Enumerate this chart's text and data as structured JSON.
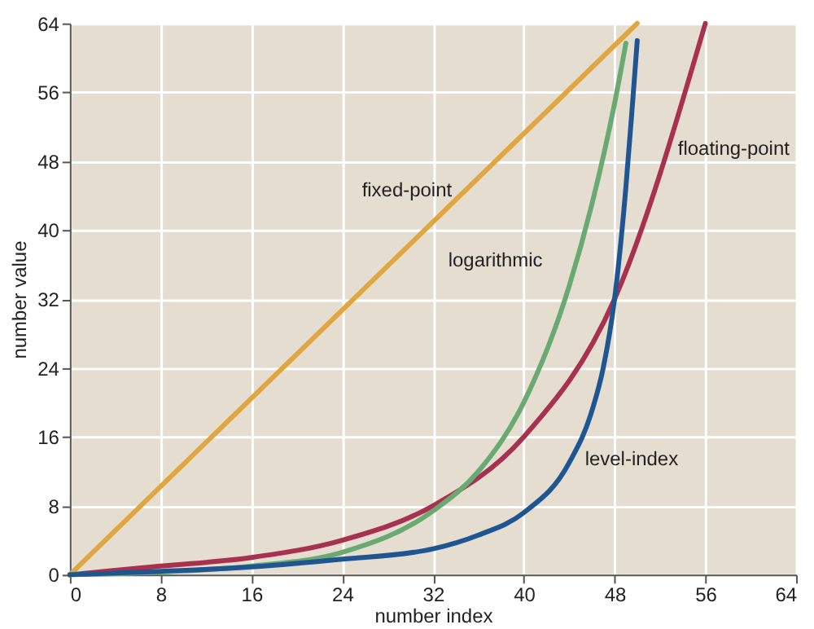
{
  "chart_data": {
    "type": "line",
    "xlabel": "number index",
    "ylabel": "number value",
    "xlim": [
      0,
      64
    ],
    "ylim": [
      0,
      64
    ],
    "xticks": [
      0,
      8,
      16,
      24,
      32,
      40,
      48,
      56,
      64
    ],
    "yticks": [
      0,
      8,
      16,
      24,
      32,
      40,
      48,
      56,
      64
    ],
    "grid": true,
    "marker": "none",
    "line_style": "solid",
    "series": [
      {
        "name": "fixed-point",
        "color": "#e0a63f",
        "x": [
          0,
          50
        ],
        "values": [
          0,
          64
        ]
      },
      {
        "name": "floating-point",
        "color": "#a8314f",
        "x": [
          0,
          8,
          16,
          24,
          32,
          40,
          48,
          56
        ],
        "values": [
          0,
          1,
          2,
          4,
          8,
          16,
          32,
          64
        ]
      },
      {
        "name": "logarithmic",
        "color": "#6aaa72",
        "x": [
          0,
          8,
          16,
          24,
          32,
          36,
          40,
          44,
          46,
          48,
          49
        ],
        "values": [
          0,
          0.3,
          1,
          2.6,
          7.4,
          12,
          20,
          33.5,
          43,
          54.7,
          61.7
        ]
      },
      {
        "name": "level-index",
        "color": "#1f5590",
        "x": [
          0,
          8,
          16,
          24,
          32,
          36,
          40,
          44,
          46,
          47,
          48,
          49,
          49.6,
          50
        ],
        "values": [
          0,
          0.4,
          0.9,
          1.8,
          3,
          4.6,
          7.2,
          13,
          19,
          24,
          32,
          45,
          55,
          62
        ]
      }
    ]
  }
}
